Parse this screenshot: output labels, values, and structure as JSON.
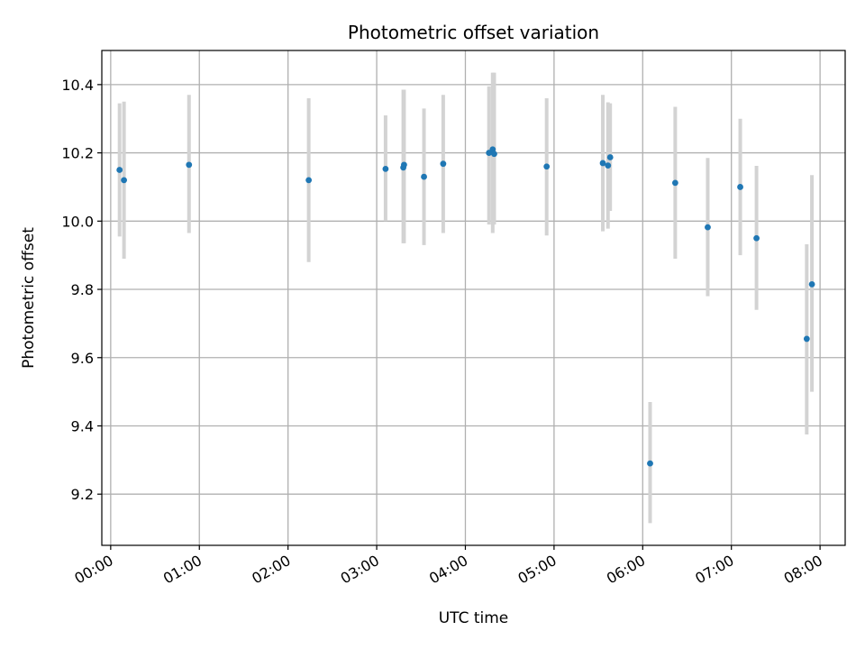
{
  "chart_data": {
    "type": "scatter",
    "title": "Photometric offset variation",
    "xlabel": "UTC time",
    "ylabel": "Photometric offset",
    "x_unit": "minutes",
    "xlim": [
      -6,
      497
    ],
    "ylim": [
      9.05,
      10.5
    ],
    "x_ticks": [
      {
        "value": 0,
        "label": "00:00"
      },
      {
        "value": 60,
        "label": "01:00"
      },
      {
        "value": 120,
        "label": "02:00"
      },
      {
        "value": 180,
        "label": "03:00"
      },
      {
        "value": 240,
        "label": "04:00"
      },
      {
        "value": 300,
        "label": "05:00"
      },
      {
        "value": 360,
        "label": "06:00"
      },
      {
        "value": 420,
        "label": "07:00"
      },
      {
        "value": 480,
        "label": "08:00"
      }
    ],
    "y_ticks": [
      {
        "value": 9.2,
        "label": "9.2"
      },
      {
        "value": 9.4,
        "label": "9.4"
      },
      {
        "value": 9.6,
        "label": "9.6"
      },
      {
        "value": 9.8,
        "label": "9.8"
      },
      {
        "value": 10.0,
        "label": "10.0"
      },
      {
        "value": 10.2,
        "label": "10.2"
      },
      {
        "value": 10.4,
        "label": "10.4"
      }
    ],
    "grid": true,
    "point_color": "#1f77b4",
    "errorbar_color": "#d3d3d3",
    "points": [
      {
        "x": 6,
        "y": 10.15,
        "ylo": 9.955,
        "yhi": 10.345
      },
      {
        "x": 9,
        "y": 10.12,
        "ylo": 9.89,
        "yhi": 10.35
      },
      {
        "x": 53,
        "y": 10.165,
        "ylo": 9.965,
        "yhi": 10.37
      },
      {
        "x": 134,
        "y": 10.12,
        "ylo": 9.88,
        "yhi": 10.36
      },
      {
        "x": 186,
        "y": 10.153,
        "ylo": 10.0,
        "yhi": 10.31
      },
      {
        "x": 198,
        "y": 10.157,
        "ylo": 9.935,
        "yhi": 10.385
      },
      {
        "x": 198.5,
        "y": 10.165,
        "ylo": 9.935,
        "yhi": 10.385
      },
      {
        "x": 212,
        "y": 10.13,
        "ylo": 9.93,
        "yhi": 10.33
      },
      {
        "x": 225,
        "y": 10.168,
        "ylo": 9.965,
        "yhi": 10.37
      },
      {
        "x": 256,
        "y": 10.2,
        "ylo": 9.99,
        "yhi": 10.395
      },
      {
        "x": 258.5,
        "y": 10.21,
        "ylo": 9.965,
        "yhi": 10.435
      },
      {
        "x": 259.5,
        "y": 10.197,
        "ylo": 9.99,
        "yhi": 10.435
      },
      {
        "x": 295,
        "y": 10.16,
        "ylo": 9.958,
        "yhi": 10.36
      },
      {
        "x": 333,
        "y": 10.17,
        "ylo": 9.97,
        "yhi": 10.37
      },
      {
        "x": 336.5,
        "y": 10.163,
        "ylo": 9.978,
        "yhi": 10.348
      },
      {
        "x": 338,
        "y": 10.187,
        "ylo": 10.03,
        "yhi": 10.345
      },
      {
        "x": 365,
        "y": 9.29,
        "ylo": 9.115,
        "yhi": 9.47
      },
      {
        "x": 382,
        "y": 10.112,
        "ylo": 9.89,
        "yhi": 10.335
      },
      {
        "x": 404,
        "y": 9.982,
        "ylo": 9.78,
        "yhi": 10.185
      },
      {
        "x": 426,
        "y": 10.1,
        "ylo": 9.9,
        "yhi": 10.3
      },
      {
        "x": 437,
        "y": 9.95,
        "ylo": 9.74,
        "yhi": 10.162
      },
      {
        "x": 471,
        "y": 9.655,
        "ylo": 9.375,
        "yhi": 9.932
      },
      {
        "x": 474.5,
        "y": 9.815,
        "ylo": 9.5,
        "yhi": 10.135
      }
    ]
  }
}
